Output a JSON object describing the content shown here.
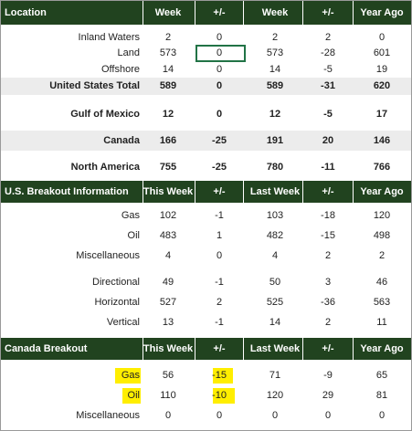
{
  "sections": [
    {
      "header": [
        "Location",
        "Week",
        "+/-",
        "Week",
        "+/-",
        "Year Ago"
      ],
      "rows": [
        {
          "label": "Inland Waters",
          "cells": [
            2,
            0,
            2,
            2,
            0
          ]
        },
        {
          "label": "Land",
          "cells": [
            573,
            0,
            573,
            -28,
            601
          ]
        },
        {
          "label": "Offshore",
          "cells": [
            14,
            0,
            14,
            -5,
            19
          ]
        },
        {
          "label": "United States Total",
          "cells": [
            589,
            0,
            589,
            -31,
            620
          ]
        },
        {
          "label": "Gulf of Mexico",
          "cells": [
            12,
            0,
            12,
            -5,
            17
          ]
        },
        {
          "label": "Canada",
          "cells": [
            166,
            -25,
            191,
            20,
            146
          ]
        },
        {
          "label": "North America",
          "cells": [
            755,
            -25,
            780,
            -11,
            766
          ]
        }
      ]
    },
    {
      "header": [
        "U.S. Breakout Information",
        "This Week",
        "+/-",
        "Last Week",
        "+/-",
        "Year Ago"
      ],
      "rows": [
        {
          "label": "Gas",
          "cells": [
            102,
            -1,
            103,
            -18,
            120
          ]
        },
        {
          "label": "Oil",
          "cells": [
            483,
            1,
            482,
            -15,
            498
          ]
        },
        {
          "label": "Miscellaneous",
          "cells": [
            4,
            0,
            4,
            2,
            2
          ]
        },
        {
          "label": "Directional",
          "cells": [
            49,
            -1,
            50,
            3,
            46
          ]
        },
        {
          "label": "Horizontal",
          "cells": [
            527,
            2,
            525,
            -36,
            563
          ]
        },
        {
          "label": "Vertical",
          "cells": [
            13,
            -1,
            14,
            2,
            11
          ]
        }
      ]
    },
    {
      "header": [
        "Canada Breakout",
        "This Week",
        "+/-",
        "Last Week",
        "+/-",
        "Year Ago"
      ],
      "rows": [
        {
          "label": "Gas",
          "cells": [
            56,
            -15,
            71,
            -9,
            65
          ]
        },
        {
          "label": "Oil",
          "cells": [
            110,
            -10,
            120,
            29,
            81
          ]
        },
        {
          "label": "Miscellaneous",
          "cells": [
            0,
            0,
            0,
            0,
            0
          ]
        }
      ]
    }
  ]
}
